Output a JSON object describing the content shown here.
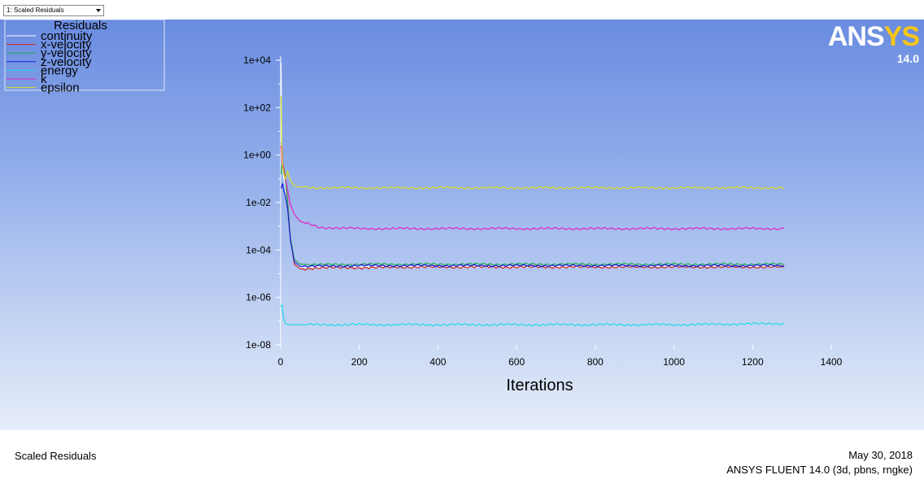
{
  "window": {
    "dropdown_label": "1: Scaled Residuals"
  },
  "logo": {
    "text_a": "ANS",
    "text_b": "YS",
    "version": "14.0"
  },
  "footer": {
    "title": "Scaled Residuals",
    "date": "May 30, 2018",
    "solver": "ANSYS FLUENT 14.0 (3d, pbns, rngke)"
  },
  "chart_data": {
    "type": "line",
    "title": "",
    "xlabel": "Iterations",
    "ylabel": "",
    "xlim": [
      0,
      1400
    ],
    "yscale": "log",
    "ylim_exponent": [
      -8,
      4
    ],
    "x_ticks": [
      "0",
      "200",
      "400",
      "600",
      "800",
      "1000",
      "1200",
      "1400"
    ],
    "y_ticks": [
      "1e+04",
      "1e+02",
      "1e+00",
      "1e-02",
      "1e-04",
      "1e-06",
      "1e-08"
    ],
    "legend": {
      "title": "Residuals",
      "placement": "top-left"
    },
    "series": [
      {
        "name": "continuity",
        "color": "#ffffff",
        "x": [
          1,
          3,
          5,
          8,
          12,
          18,
          25,
          35,
          50,
          100,
          200,
          340,
          500,
          800,
          1000,
          1280
        ],
        "log10_y": [
          3.9,
          0.3,
          -0.5,
          -1.0,
          -1.3,
          -2.2,
          -3.5,
          -4.5,
          -4.75,
          -4.72,
          -4.7,
          -4.7,
          -4.7,
          -4.7,
          -4.68,
          -4.68
        ]
      },
      {
        "name": "x-velocity",
        "color": "#d42020",
        "x": [
          1,
          3,
          5,
          8,
          12,
          18,
          25,
          35,
          50,
          100,
          200,
          340,
          500,
          800,
          1000,
          1280
        ],
        "log10_y": [
          0.5,
          0.45,
          -0.3,
          -0.6,
          -0.9,
          -2.0,
          -3.5,
          -4.6,
          -4.8,
          -4.75,
          -4.75,
          -4.72,
          -4.72,
          -4.72,
          -4.72,
          -4.72
        ]
      },
      {
        "name": "y-velocity",
        "color": "#20b050",
        "x": [
          1,
          3,
          5,
          8,
          12,
          18,
          25,
          35,
          50,
          100,
          200,
          340,
          500,
          800,
          1000,
          1280
        ],
        "log10_y": [
          -0.8,
          -0.4,
          -0.5,
          -0.7,
          -1.0,
          -2.1,
          -3.5,
          -4.4,
          -4.6,
          -4.62,
          -4.6,
          -4.6,
          -4.6,
          -4.6,
          -4.6,
          -4.6
        ]
      },
      {
        "name": "z-velocity",
        "color": "#1a1ad8",
        "x": [
          1,
          3,
          5,
          8,
          12,
          18,
          25,
          35,
          50,
          100,
          200,
          340,
          500,
          800,
          1000,
          1280
        ],
        "log10_y": [
          -1.4,
          -1.3,
          -1.2,
          -1.5,
          -1.7,
          -2.3,
          -3.6,
          -4.5,
          -4.7,
          -4.68,
          -4.66,
          -4.66,
          -4.66,
          -4.66,
          -4.66,
          -4.66
        ]
      },
      {
        "name": "energy",
        "color": "#20d8e8",
        "x": [
          1,
          3,
          5,
          8,
          12,
          18,
          25,
          35,
          50,
          100,
          200,
          340,
          500,
          800,
          1000,
          1280
        ],
        "log10_y": [
          -6.4,
          -6.3,
          -6.5,
          -6.9,
          -7.1,
          -7.15,
          -7.15,
          -7.15,
          -7.15,
          -7.15,
          -7.15,
          -7.15,
          -7.15,
          -7.15,
          -7.15,
          -7.1
        ]
      },
      {
        "name": "k",
        "color": "#e020c0",
        "x": [
          1,
          3,
          5,
          8,
          12,
          18,
          25,
          35,
          50,
          100,
          200,
          340,
          500,
          800,
          1000,
          1280
        ],
        "log10_y": [
          0.4,
          -0.2,
          -0.5,
          -0.8,
          -1.0,
          -1.5,
          -2.1,
          -2.5,
          -2.8,
          -3.05,
          -3.1,
          -3.1,
          -3.1,
          -3.1,
          -3.1,
          -3.1
        ]
      },
      {
        "name": "epsilon",
        "color": "#d8e020",
        "x": [
          1,
          3,
          5,
          8,
          12,
          18,
          25,
          35,
          50,
          100,
          200,
          340,
          500,
          800,
          1000,
          1280
        ],
        "log10_y": [
          2.5,
          0.2,
          -0.4,
          -0.8,
          -1.0,
          -0.7,
          -1.1,
          -1.3,
          -1.35,
          -1.38,
          -1.38,
          -1.38,
          -1.38,
          -1.38,
          -1.38,
          -1.38
        ]
      }
    ]
  }
}
